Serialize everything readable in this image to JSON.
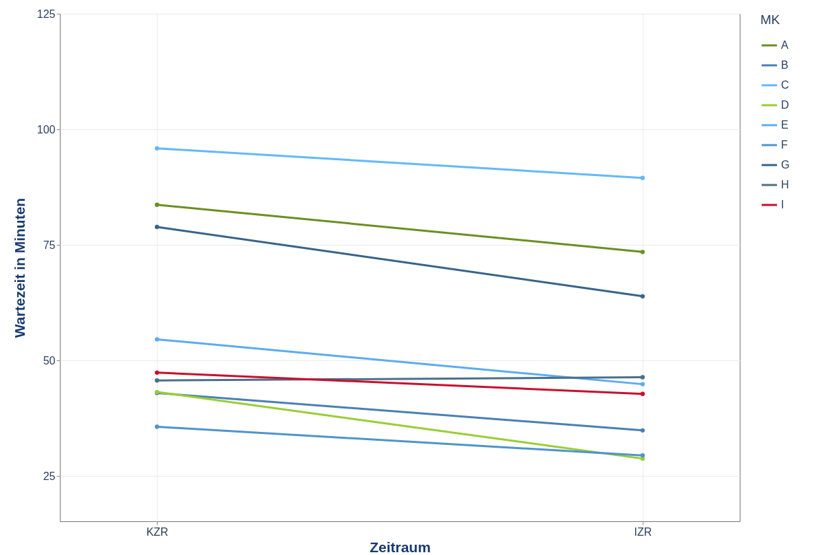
{
  "chart_data": {
    "type": "line",
    "xlabel": "Zeitraum",
    "ylabel": "Wartezeit in Minuten",
    "legend_title": "MK",
    "categories": [
      "KZR",
      "IZR"
    ],
    "series": [
      {
        "name": "A",
        "color": "#6b8e23",
        "values": [
          83.7,
          73.5
        ]
      },
      {
        "name": "B",
        "color": "#4a7fb5",
        "values": [
          43.0,
          34.9
        ]
      },
      {
        "name": "C",
        "color": "#63b8ff",
        "values": [
          95.9,
          89.5
        ]
      },
      {
        "name": "D",
        "color": "#9acd32",
        "values": [
          43.2,
          28.8
        ]
      },
      {
        "name": "E",
        "color": "#5cacee",
        "values": [
          54.6,
          44.9
        ]
      },
      {
        "name": "F",
        "color": "#4f94cd",
        "values": [
          35.7,
          29.5
        ]
      },
      {
        "name": "G",
        "color": "#36648b",
        "values": [
          78.9,
          63.9
        ]
      },
      {
        "name": "H",
        "color": "#4a708b",
        "values": [
          45.7,
          46.4
        ]
      },
      {
        "name": "I",
        "color": "#c8102e",
        "values": [
          47.4,
          42.8
        ]
      }
    ],
    "ylim": [
      15.25,
      125
    ],
    "yticks": [
      25,
      50,
      75,
      100,
      125
    ],
    "grid": true,
    "legend": "top right",
    "marker": "circle",
    "line_style": "solid"
  }
}
